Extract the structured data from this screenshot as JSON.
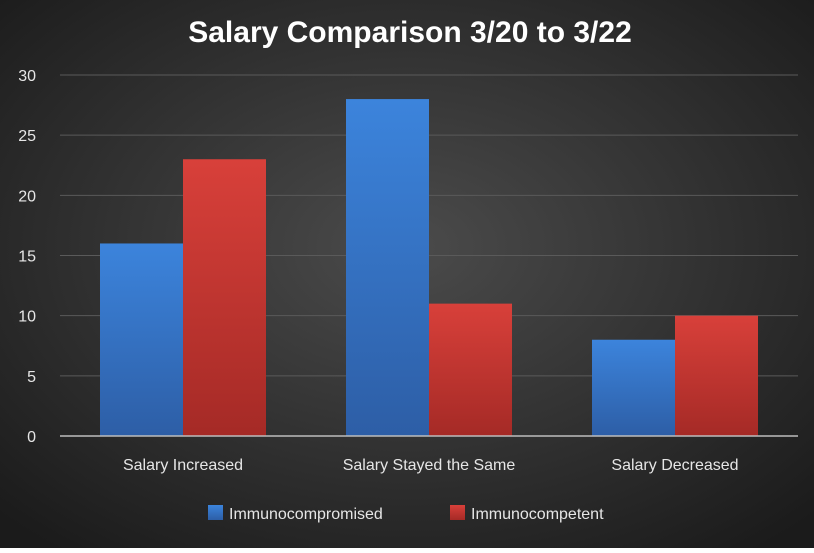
{
  "chart_data": {
    "type": "bar",
    "title": "Salary Comparison 3/20 to 3/22",
    "xlabel": "",
    "ylabel": "",
    "categories": [
      "Salary Increased",
      "Salary Stayed the Same",
      "Salary Decreased"
    ],
    "series": [
      {
        "name": "Immunocompromised",
        "values": [
          16,
          28,
          8
        ],
        "color": "#3a7ad0"
      },
      {
        "name": "Immunocompetent",
        "values": [
          23,
          11,
          10
        ],
        "color": "#cf3b37"
      }
    ],
    "ylim": [
      0,
      30
    ],
    "yticks": [
      "0",
      "5",
      "10",
      "15",
      "20",
      "25",
      "30"
    ],
    "grid": true,
    "legend": "bottom"
  },
  "colors": {
    "background_center": "#4a4a4a",
    "background_edge": "#1a1a1a",
    "text": "#e6e6e6",
    "title": "#ffffff",
    "gridline": "#5a5a5a"
  }
}
